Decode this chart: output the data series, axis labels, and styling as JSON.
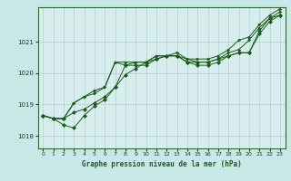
{
  "title": "Graphe pression niveau de la mer (hPa)",
  "background_color": "#c8e8e8",
  "plot_bg_color": "#d8eeee",
  "grid_color": "#b0d0d0",
  "line_color": "#1a5c1a",
  "xlim": [
    -0.5,
    23.5
  ],
  "ylim": [
    1017.6,
    1022.1
  ],
  "yticks": [
    1018,
    1019,
    1020,
    1021
  ],
  "xticks": [
    0,
    1,
    2,
    3,
    4,
    5,
    6,
    7,
    8,
    9,
    10,
    11,
    12,
    13,
    14,
    15,
    16,
    17,
    18,
    19,
    20,
    21,
    22,
    23
  ],
  "series": [
    [
      1018.65,
      1018.55,
      1018.55,
      1018.75,
      1018.85,
      1019.05,
      1019.25,
      1019.55,
      1020.25,
      1020.25,
      1020.25,
      1020.45,
      1020.55,
      1020.55,
      1020.35,
      1020.35,
      1020.35,
      1020.45,
      1020.55,
      1020.65,
      1020.65,
      1021.35,
      1021.75,
      1021.85
    ],
    [
      1018.65,
      1018.55,
      1018.55,
      1019.05,
      1019.25,
      1019.35,
      1019.55,
      1020.35,
      1020.25,
      1020.35,
      1020.35,
      1020.55,
      1020.55,
      1020.55,
      1020.45,
      1020.35,
      1020.35,
      1020.45,
      1020.65,
      1020.75,
      1021.05,
      1021.45,
      1021.75,
      1021.95
    ],
    [
      1018.65,
      1018.55,
      1018.35,
      1018.25,
      1018.65,
      1018.95,
      1019.15,
      1019.55,
      1019.95,
      1020.15,
      1020.35,
      1020.45,
      1020.55,
      1020.55,
      1020.35,
      1020.25,
      1020.25,
      1020.35,
      1020.55,
      1020.65,
      1020.65,
      1021.25,
      1021.65,
      1021.85
    ],
    [
      1018.65,
      1018.55,
      1018.55,
      1019.05,
      1019.25,
      1019.45,
      1019.55,
      1020.35,
      1020.35,
      1020.35,
      1020.35,
      1020.55,
      1020.55,
      1020.65,
      1020.45,
      1020.45,
      1020.45,
      1020.55,
      1020.75,
      1021.05,
      1021.15,
      1021.55,
      1021.85,
      1022.05
    ]
  ]
}
